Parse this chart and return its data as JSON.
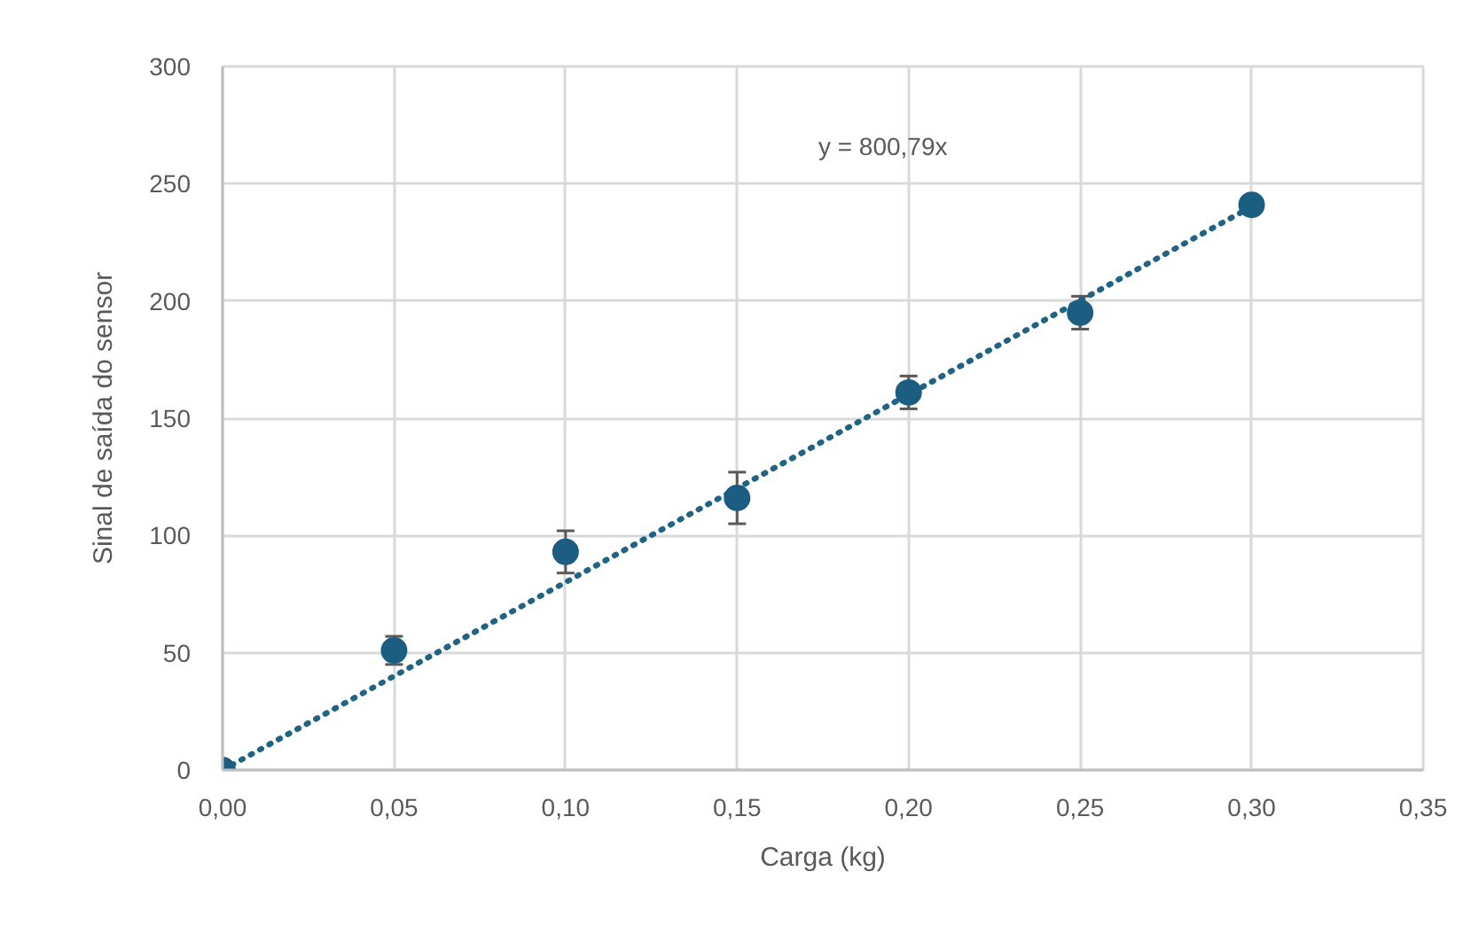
{
  "chart_data": {
    "type": "scatter",
    "xlabel": "Carga (kg)",
    "ylabel": "Sinal de saída do sensor",
    "annotations": [
      "y = 800,79x"
    ],
    "xlim": [
      0,
      0.35
    ],
    "xticks": [
      {
        "value": 0,
        "label": "0,00"
      },
      {
        "value": 0.05,
        "label": "0,05"
      },
      {
        "value": 0.1,
        "label": "0,10"
      },
      {
        "value": 0.15,
        "label": "0,15"
      },
      {
        "value": 0.2,
        "label": "0,20"
      },
      {
        "value": 0.25,
        "label": "0,25"
      },
      {
        "value": 0.3,
        "label": "0,30"
      },
      {
        "value": 0.35,
        "label": "0,35"
      }
    ],
    "ylim": [
      0,
      300
    ],
    "yticks": [
      0,
      50,
      100,
      150,
      200,
      250,
      300
    ],
    "grid": true,
    "marker": "circle",
    "series": [
      {
        "color": "#1b5e82",
        "x": [
          0,
          0.05,
          0.1,
          0.15,
          0.2,
          0.25,
          0.3
        ],
        "values": [
          0,
          51,
          93,
          116,
          161,
          195,
          241
        ],
        "errors": [
          null,
          6,
          9,
          11,
          7,
          7,
          null
        ]
      },
      {
        "type": "line",
        "color": "#1f6485",
        "line_style": "dotted",
        "marker": "none",
        "x": [
          0,
          0.3
        ],
        "values": [
          0,
          240.2
        ]
      }
    ]
  }
}
